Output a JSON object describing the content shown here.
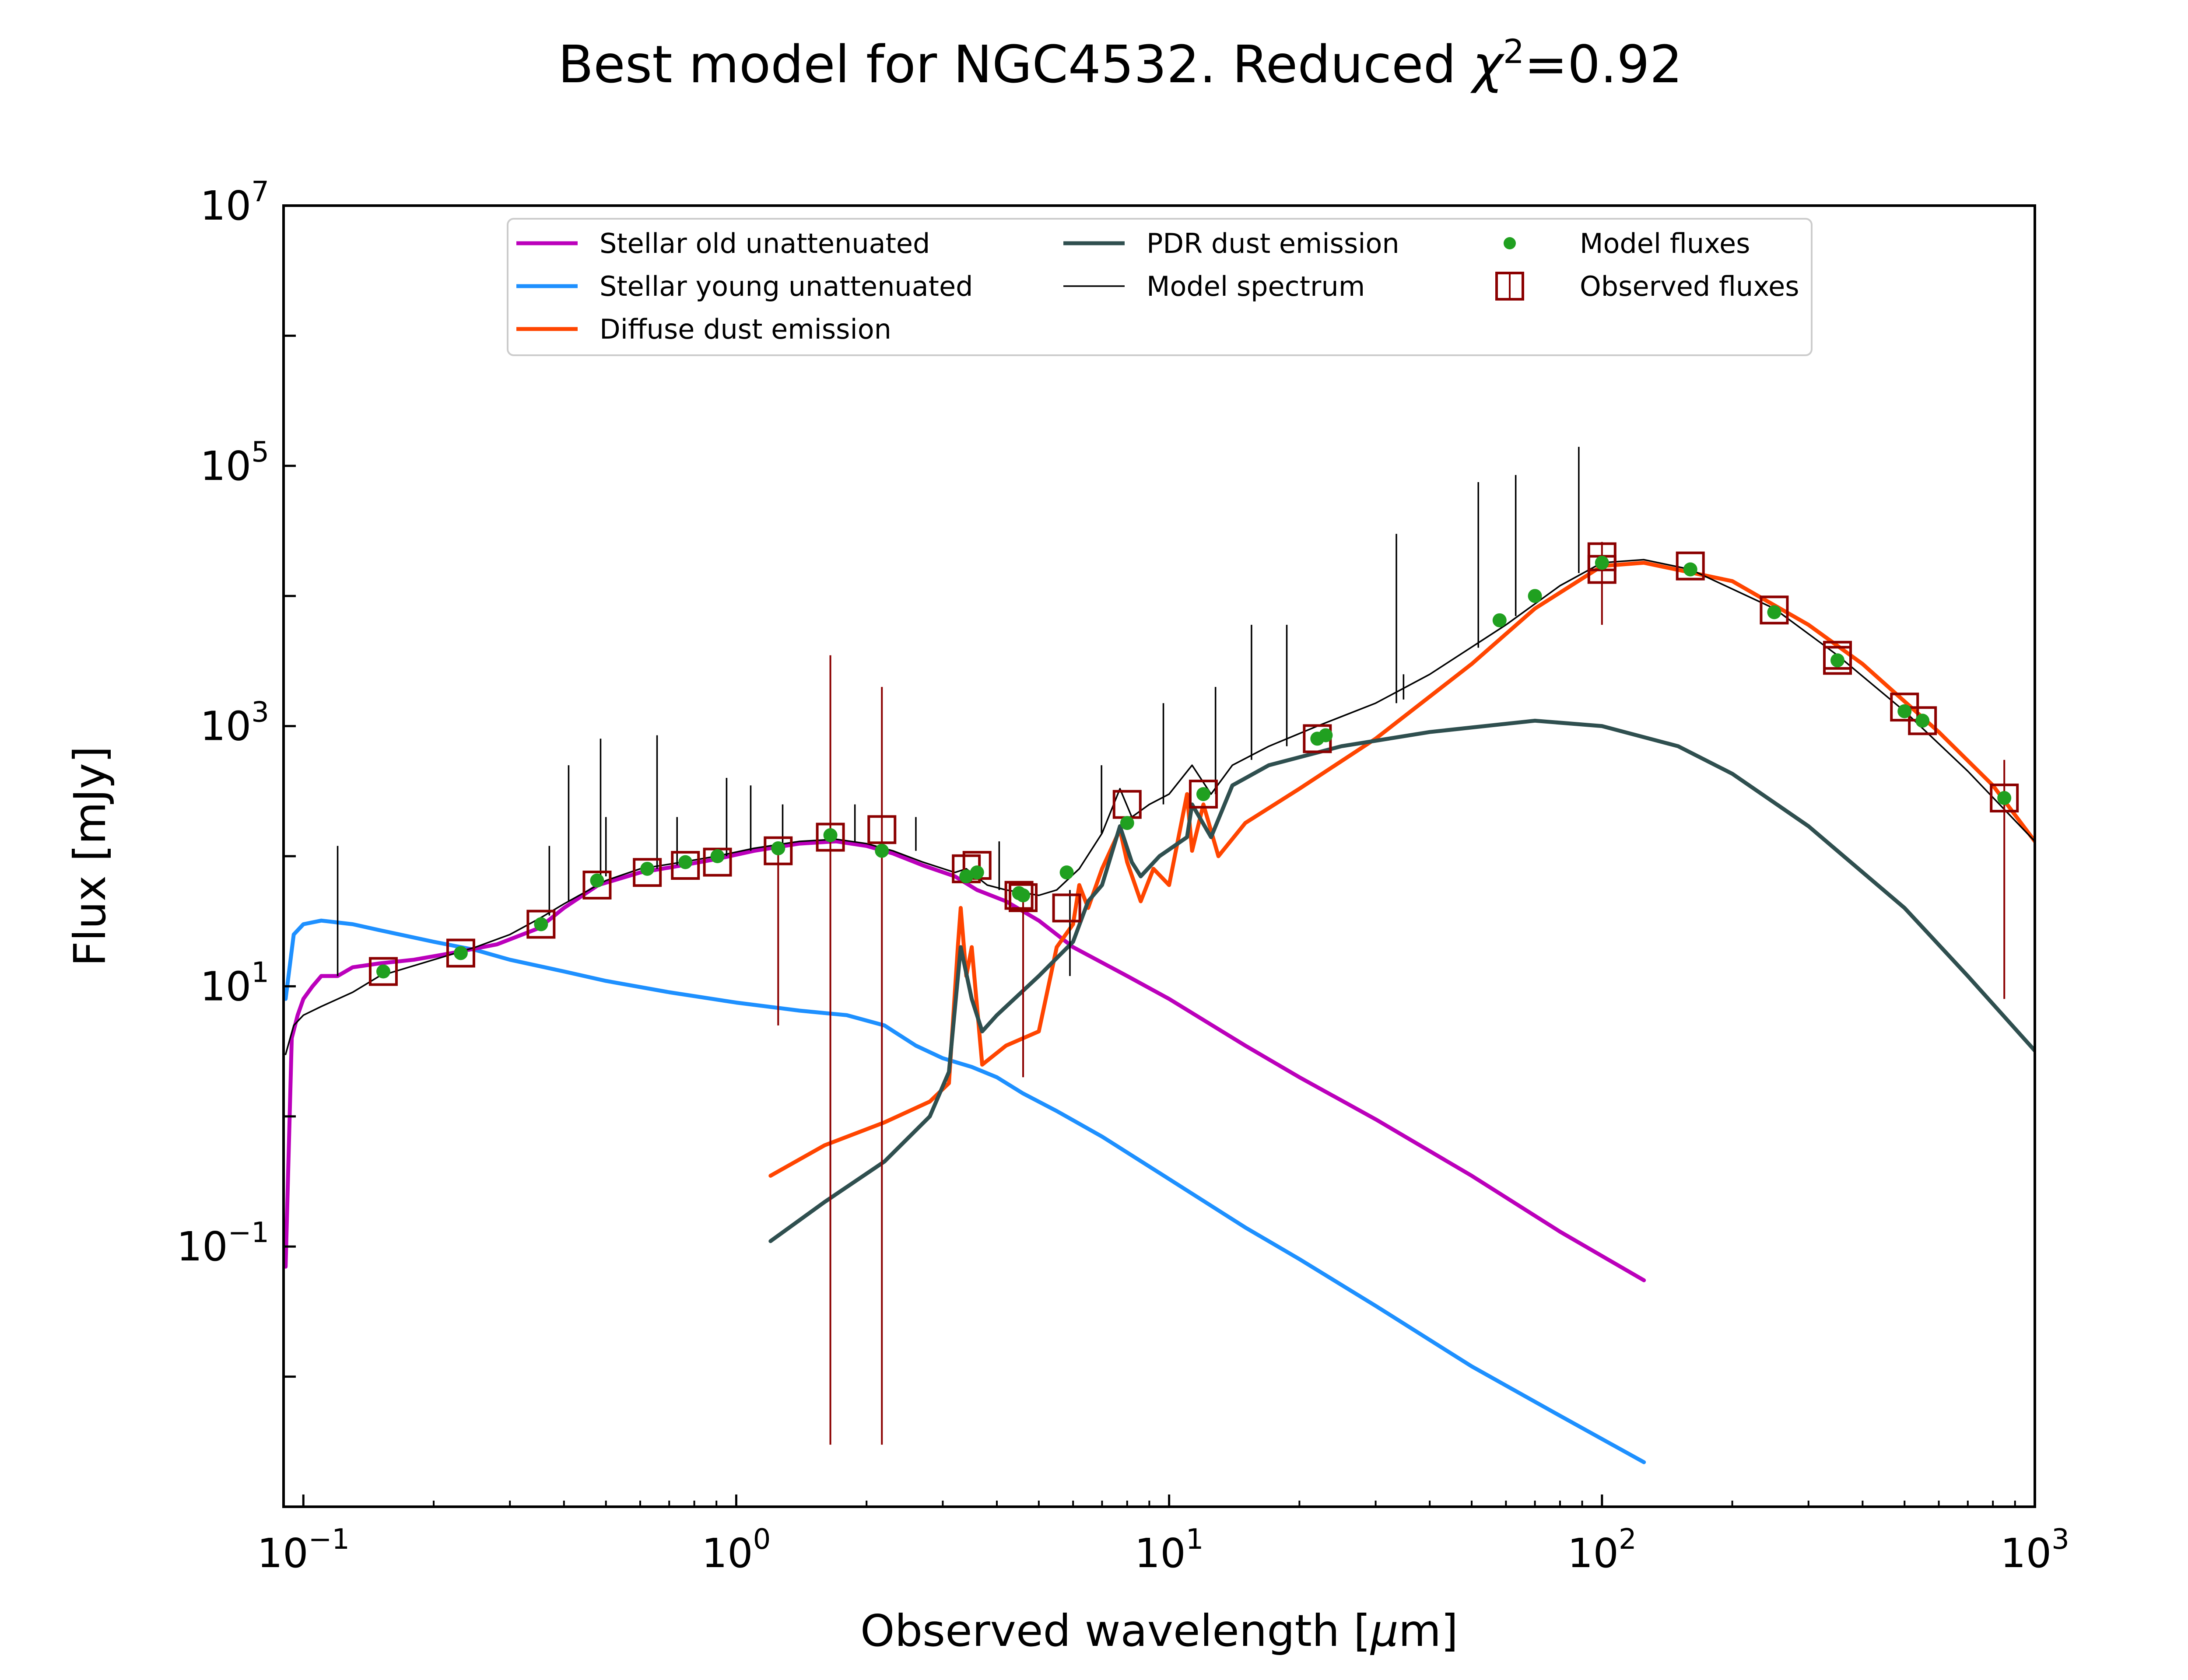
{
  "chart_data": {
    "type": "line",
    "title_main": "Best model for NGC4532. Reduced ",
    "title_chi": "χ",
    "title_sup": "2",
    "title_value": "=0.92",
    "xlabel_pre": "Observed wavelength [",
    "xlabel_mu": "μ",
    "xlabel_post": "m]",
    "ylabel": "Flux [mJy]",
    "xscale": "log",
    "yscale": "log",
    "xlim": [
      0.09,
      1000
    ],
    "ylim": [
      0.001,
      10000000
    ],
    "xticks": [
      {
        "base": "10",
        "exp": "−1",
        "value": 0.1
      },
      {
        "base": "10",
        "exp": "0",
        "value": 1
      },
      {
        "base": "10",
        "exp": "1",
        "value": 10
      },
      {
        "base": "10",
        "exp": "2",
        "value": 100
      },
      {
        "base": "10",
        "exp": "3",
        "value": 1000
      }
    ],
    "yticks": [
      {
        "base": "10",
        "exp": "−1",
        "value": 0.1
      },
      {
        "base": "10",
        "exp": "1",
        "value": 10
      },
      {
        "base": "10",
        "exp": "3",
        "value": 1000
      },
      {
        "base": "10",
        "exp": "5",
        "value": 100000
      },
      {
        "base": "10",
        "exp": "7",
        "value": 10000000
      }
    ],
    "legend_position": "upper-center",
    "colors": {
      "old": "#bb00bb",
      "young": "#1e90ff",
      "diffuse": "#ff4500",
      "pdr": "#2f4f4f",
      "model": "#000000",
      "model_fluxes": "#20a020",
      "observed": "#8b0000"
    },
    "legend": [
      {
        "key": "old",
        "label": "Stellar old unattenuated",
        "kind": "line"
      },
      {
        "key": "young",
        "label": "Stellar young unattenuated",
        "kind": "line"
      },
      {
        "key": "diffuse",
        "label": "Diffuse dust emission",
        "kind": "line"
      },
      {
        "key": "pdr",
        "label": "PDR dust emission",
        "kind": "line"
      },
      {
        "key": "model",
        "label": "Model spectrum",
        "kind": "thinline"
      },
      {
        "key": "model_fluxes",
        "label": "Model fluxes",
        "kind": "dot"
      },
      {
        "key": "observed",
        "label": "Observed fluxes",
        "kind": "square"
      }
    ],
    "series": [
      {
        "key": "old",
        "x": [
          0.091,
          0.094,
          0.097,
          0.1,
          0.105,
          0.11,
          0.12,
          0.13,
          0.15,
          0.18,
          0.22,
          0.28,
          0.35,
          0.4,
          0.48,
          0.6,
          0.75,
          0.9,
          1.1,
          1.4,
          1.7,
          2.0,
          2.3,
          2.7,
          3.2,
          3.6,
          4.2,
          5,
          6,
          8,
          10,
          15,
          20,
          30,
          50,
          80,
          125
        ],
        "y": [
          0.07,
          4,
          6,
          8,
          10,
          12,
          12,
          14,
          15,
          16,
          18,
          21,
          28,
          40,
          60,
          75,
          85,
          95,
          110,
          125,
          130,
          120,
          105,
          85,
          70,
          55,
          45,
          32,
          20,
          12,
          8,
          3.5,
          2.0,
          0.95,
          0.35,
          0.13,
          0.055
        ]
      },
      {
        "key": "young",
        "x": [
          0.091,
          0.095,
          0.1,
          0.11,
          0.13,
          0.15,
          0.2,
          0.25,
          0.3,
          0.4,
          0.5,
          0.7,
          1.0,
          1.4,
          1.8,
          2.2,
          2.6,
          3.0,
          3.5,
          4.0,
          4.6,
          5.5,
          7,
          10,
          15,
          20,
          30,
          50,
          80,
          125
        ],
        "y": [
          8,
          25,
          30,
          32,
          30,
          27,
          22,
          19,
          16,
          13,
          11,
          9,
          7.5,
          6.5,
          6.0,
          5.0,
          3.5,
          2.8,
          2.4,
          2.0,
          1.5,
          1.1,
          0.7,
          0.33,
          0.14,
          0.08,
          0.035,
          0.012,
          0.005,
          0.0022
        ]
      },
      {
        "key": "diffuse",
        "x": [
          1.2,
          1.6,
          2.2,
          2.8,
          3.1,
          3.25,
          3.3,
          3.4,
          3.5,
          3.7,
          4.2,
          5.0,
          5.5,
          6.0,
          6.2,
          6.5,
          7.0,
          7.7,
          8.0,
          8.6,
          9.2,
          10.0,
          11.0,
          11.3,
          12.0,
          13.0,
          15,
          20,
          30,
          50,
          70,
          100,
          125,
          200,
          300,
          400,
          600,
          800,
          1000
        ],
        "y": [
          0.35,
          0.6,
          0.9,
          1.3,
          1.8,
          20,
          40,
          12,
          20,
          2.5,
          3.5,
          4.5,
          20,
          30,
          60,
          40,
          80,
          160,
          90,
          45,
          80,
          60,
          300,
          110,
          250,
          100,
          180,
          330,
          800,
          3000,
          8000,
          17000,
          18000,
          13000,
          6000,
          3000,
          900,
          350,
          130
        ]
      },
      {
        "key": "pdr",
        "x": [
          1.2,
          1.6,
          2.2,
          2.8,
          3.1,
          3.3,
          3.5,
          3.7,
          4.0,
          5.0,
          6.0,
          6.5,
          7.0,
          7.7,
          8.2,
          8.6,
          9.5,
          11,
          11.3,
          12.5,
          14,
          17,
          25,
          40,
          70,
          100,
          150,
          200,
          300,
          500,
          700,
          1000
        ],
        "y": [
          0.11,
          0.22,
          0.45,
          1.0,
          2.2,
          20,
          8,
          4.5,
          6,
          12,
          22,
          45,
          60,
          170,
          90,
          70,
          100,
          140,
          250,
          140,
          350,
          500,
          700,
          900,
          1100,
          1000,
          700,
          430,
          170,
          40,
          12,
          3.2
        ]
      },
      {
        "key": "model",
        "x": [
          0.091,
          0.095,
          0.1,
          0.11,
          0.13,
          0.15,
          0.2,
          0.25,
          0.3,
          0.35,
          0.4,
          0.5,
          0.6,
          0.75,
          0.9,
          1.1,
          1.4,
          1.7,
          2.0,
          2.3,
          2.7,
          3.2,
          3.4,
          3.8,
          4.2,
          5.0,
          5.5,
          6.2,
          7.0,
          7.7,
          8.2,
          9.0,
          10,
          11.3,
          12.5,
          14,
          17,
          22,
          30,
          40,
          60,
          80,
          100,
          125,
          160,
          250,
          350,
          500,
          700,
          1000
        ],
        "y": [
          3,
          5,
          6,
          7,
          9,
          12,
          16,
          20,
          25,
          33,
          43,
          65,
          80,
          90,
          100,
          115,
          130,
          135,
          125,
          110,
          90,
          75,
          80,
          60,
          55,
          50,
          55,
          80,
          150,
          330,
          200,
          250,
          300,
          500,
          300,
          500,
          700,
          1000,
          1500,
          2500,
          6000,
          12000,
          18000,
          19000,
          16000,
          8000,
          3500,
          1300,
          450,
          130
        ]
      }
    ],
    "model_fluxes": {
      "x": [
        0.153,
        0.231,
        0.354,
        0.477,
        0.623,
        0.763,
        0.905,
        1.25,
        1.65,
        2.17,
        3.4,
        3.6,
        4.5,
        4.6,
        5.8,
        8.0,
        12,
        22,
        23,
        58,
        70,
        100,
        160,
        250,
        350,
        500,
        550,
        850
      ],
      "y": [
        13,
        18,
        30,
        65,
        80,
        90,
        100,
        115,
        145,
        110,
        70,
        75,
        52,
        50,
        75,
        180,
        300,
        800,
        850,
        6500,
        10000,
        18000,
        16000,
        7500,
        3200,
        1300,
        1100,
        280
      ]
    },
    "observed_fluxes": {
      "x": [
        0.153,
        0.231,
        0.354,
        0.477,
        0.623,
        0.763,
        0.905,
        1.25,
        1.65,
        2.17,
        3.4,
        3.6,
        4.5,
        4.6,
        5.8,
        8.0,
        12,
        22,
        100,
        100,
        160,
        250,
        350,
        350,
        500,
        550,
        850
      ],
      "y": [
        13,
        18,
        30,
        60,
        75,
        85,
        90,
        110,
        140,
        160,
        80,
        85,
        50,
        48,
        40,
        250,
        300,
        800,
        20000,
        16000,
        17000,
        7800,
        3500,
        3200,
        1400,
        1100,
        280
      ],
      "yerr_low": [
        null,
        null,
        null,
        null,
        null,
        null,
        null,
        5,
        0.003,
        0.003,
        null,
        null,
        null,
        2,
        null,
        null,
        null,
        null,
        6000,
        null,
        null,
        null,
        null,
        null,
        null,
        null,
        8
      ],
      "yerr_high": [
        null,
        null,
        null,
        null,
        null,
        null,
        null,
        null,
        3500,
        2000,
        null,
        null,
        null,
        null,
        null,
        null,
        null,
        null,
        26000,
        null,
        null,
        null,
        null,
        null,
        null,
        null,
        550
      ]
    },
    "emission_lines": [
      {
        "x": 0.12,
        "y0": 12,
        "y1": 120
      },
      {
        "x": 0.37,
        "y0": 35,
        "y1": 120
      },
      {
        "x": 0.41,
        "y0": 45,
        "y1": 500
      },
      {
        "x": 0.486,
        "y0": 65,
        "y1": 800
      },
      {
        "x": 0.5,
        "y0": 70,
        "y1": 200
      },
      {
        "x": 0.6563,
        "y0": 80,
        "y1": 850
      },
      {
        "x": 0.73,
        "y0": 85,
        "y1": 200
      },
      {
        "x": 0.95,
        "y0": 100,
        "y1": 400
      },
      {
        "x": 1.08,
        "y0": 110,
        "y1": 350
      },
      {
        "x": 1.28,
        "y0": 120,
        "y1": 250
      },
      {
        "x": 1.88,
        "y0": 130,
        "y1": 250
      },
      {
        "x": 2.6,
        "y0": 110,
        "y1": 200
      },
      {
        "x": 4.05,
        "y0": 55,
        "y1": 130
      },
      {
        "x": 5.9,
        "y0": 55,
        "y1": 12
      },
      {
        "x": 6.98,
        "y0": 150,
        "y1": 500
      },
      {
        "x": 9.7,
        "y0": 250,
        "y1": 1500
      },
      {
        "x": 12.8,
        "y0": 300,
        "y1": 2000
      },
      {
        "x": 15.5,
        "y0": 550,
        "y1": 6000
      },
      {
        "x": 18.7,
        "y0": 700,
        "y1": 6000
      },
      {
        "x": 33.5,
        "y0": 1500,
        "y1": 30000
      },
      {
        "x": 34.8,
        "y0": 1600,
        "y1": 2500
      },
      {
        "x": 51.8,
        "y0": 4000,
        "y1": 75000
      },
      {
        "x": 63.2,
        "y0": 7000,
        "y1": 85000
      },
      {
        "x": 88.4,
        "y0": 15000,
        "y1": 140000
      }
    ]
  }
}
